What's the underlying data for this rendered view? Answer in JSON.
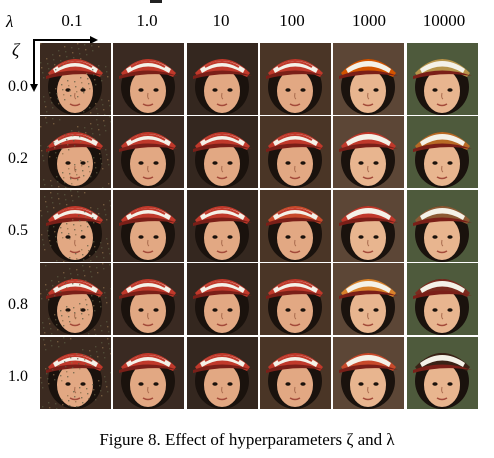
{
  "figure": {
    "lambda_symbol": "λ",
    "zeta_symbol": "ζ",
    "lambda_values": [
      "0.1",
      "1.0",
      "10",
      "100",
      "1000",
      "10000"
    ],
    "zeta_values": [
      "0.0",
      "0.2",
      "0.5",
      "0.8",
      "1.0"
    ],
    "caption": "Figure 8. Effect of hyperparameters ζ and λ"
  }
}
